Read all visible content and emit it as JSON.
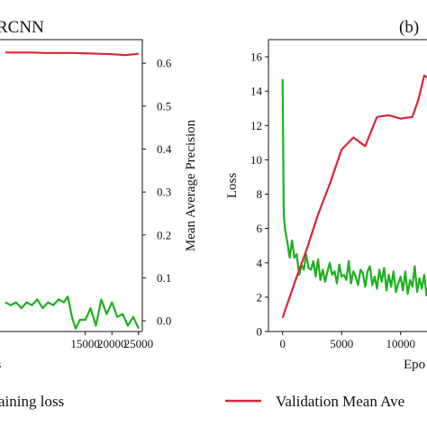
{
  "colors": {
    "training": "#1db01d",
    "validation": "#d82634",
    "axis": "#111111"
  },
  "chart_data": [
    {
      "type": "line",
      "title": "RCNN",
      "xlabel": "ns",
      "ylabel": "",
      "y2label": "Mean Average Precision",
      "xlim": [
        -1000,
        25700
      ],
      "x_ticks": [
        "15000",
        "20000",
        "25000"
      ],
      "x_tick_values": [
        15000,
        20000,
        25000
      ],
      "y2lim": [
        -0.025,
        0.655
      ],
      "y2_ticks": [
        "0.0",
        "0.1",
        "0.2",
        "0.3",
        "0.4",
        "0.5",
        "0.6"
      ],
      "y2_tick_values": [
        0.0,
        0.1,
        0.2,
        0.3,
        0.4,
        0.5,
        0.6
      ],
      "ylim": [
        0,
        1
      ],
      "series": [
        {
          "axis": "right",
          "color": "#d82634",
          "x": [
            0,
            2500,
            5000,
            7500,
            10000,
            12500,
            15000,
            17500,
            20000,
            22500,
            25000
          ],
          "y": [
            0.625,
            0.625,
            0.625,
            0.624,
            0.624,
            0.624,
            0.623,
            0.622,
            0.621,
            0.619,
            0.622
          ]
        },
        {
          "axis": "left",
          "color": "#1db01d",
          "x": [
            0,
            1000,
            2000,
            3000,
            4000,
            5000,
            6000,
            7000,
            8000,
            9000,
            10000,
            11000,
            11700,
            12500,
            13200,
            14000,
            15000,
            16000,
            17000,
            18000,
            19000,
            20000,
            21000,
            22000,
            23000,
            24000,
            25000
          ],
          "y": [
            0.1,
            0.09,
            0.1,
            0.08,
            0.1,
            0.09,
            0.11,
            0.08,
            0.1,
            0.09,
            0.11,
            0.1,
            0.12,
            0.05,
            0.01,
            0.04,
            0.04,
            0.08,
            0.02,
            0.11,
            0.06,
            0.1,
            0.05,
            0.06,
            0.02,
            0.05,
            0.01
          ]
        }
      ]
    },
    {
      "type": "line",
      "title": "(b)",
      "xlabel": "Epo",
      "ylabel": "Loss",
      "xlim": [
        -1200,
        13000
      ],
      "x_ticks": [
        "0",
        "5000",
        "10000"
      ],
      "x_tick_values": [
        0,
        5000,
        10000
      ],
      "ylim": [
        0,
        17
      ],
      "y_ticks": [
        "0",
        "2",
        "4",
        "6",
        "8",
        "10",
        "12",
        "14",
        "16"
      ],
      "y_tick_values": [
        0,
        2,
        4,
        6,
        8,
        10,
        12,
        14,
        16
      ],
      "series": [
        {
          "axis": "left",
          "color": "#1db01d",
          "x": [
            0,
            100,
            200,
            400,
            600,
            800,
            1000,
            1200,
            1400,
            1600,
            1800,
            2000,
            2200,
            2400,
            2600,
            2800,
            3000,
            3200,
            3400,
            3600,
            3800,
            4000,
            4200,
            4400,
            4600,
            4800,
            5000,
            5200,
            5400,
            5600,
            5800,
            6000,
            6200,
            6400,
            6600,
            6800,
            7000,
            7200,
            7400,
            7600,
            7800,
            8000,
            8200,
            8400,
            8600,
            8800,
            9000,
            9200,
            9400,
            9600,
            9800,
            10000,
            10200,
            10400,
            10600,
            10800,
            11000,
            11200,
            11400,
            11600,
            11800,
            12000,
            12200,
            12400
          ],
          "y": [
            14.7,
            6.8,
            6.0,
            5.2,
            4.3,
            5.3,
            4.3,
            4.5,
            3.3,
            3.9,
            3.6,
            4.5,
            3.7,
            3.6,
            4.1,
            3.2,
            4.2,
            3.0,
            3.6,
            2.9,
            3.5,
            4.0,
            3.3,
            3.5,
            2.8,
            3.9,
            3.2,
            3.3,
            3.0,
            4.1,
            2.8,
            3.5,
            3.2,
            2.7,
            3.6,
            3.4,
            2.6,
            3.5,
            3.8,
            2.7,
            3.2,
            2.5,
            3.6,
            2.9,
            3.7,
            2.4,
            3.3,
            2.6,
            3.5,
            2.3,
            2.8,
            3.2,
            2.4,
            3.5,
            2.2,
            3.0,
            2.6,
            3.8,
            2.3,
            3.1,
            2.5,
            3.3,
            2.1,
            2.9
          ]
        },
        {
          "axis": "left",
          "color": "#d82634",
          "x": [
            0,
            1000,
            2000,
            3000,
            4000,
            5000,
            6000,
            7000,
            8000,
            9000,
            10000,
            11000,
            11500,
            12000,
            12500
          ],
          "y": [
            0.8,
            2.8,
            4.7,
            6.8,
            8.6,
            10.6,
            11.3,
            10.8,
            12.5,
            12.6,
            12.4,
            12.5,
            13.5,
            14.9,
            14.7
          ]
        }
      ]
    }
  ],
  "legend": {
    "placement": "bottom",
    "items": [
      {
        "label": "aining loss",
        "color": "#1db01d"
      },
      {
        "label": "Validation Mean Ave",
        "color": "#d82634"
      }
    ]
  }
}
